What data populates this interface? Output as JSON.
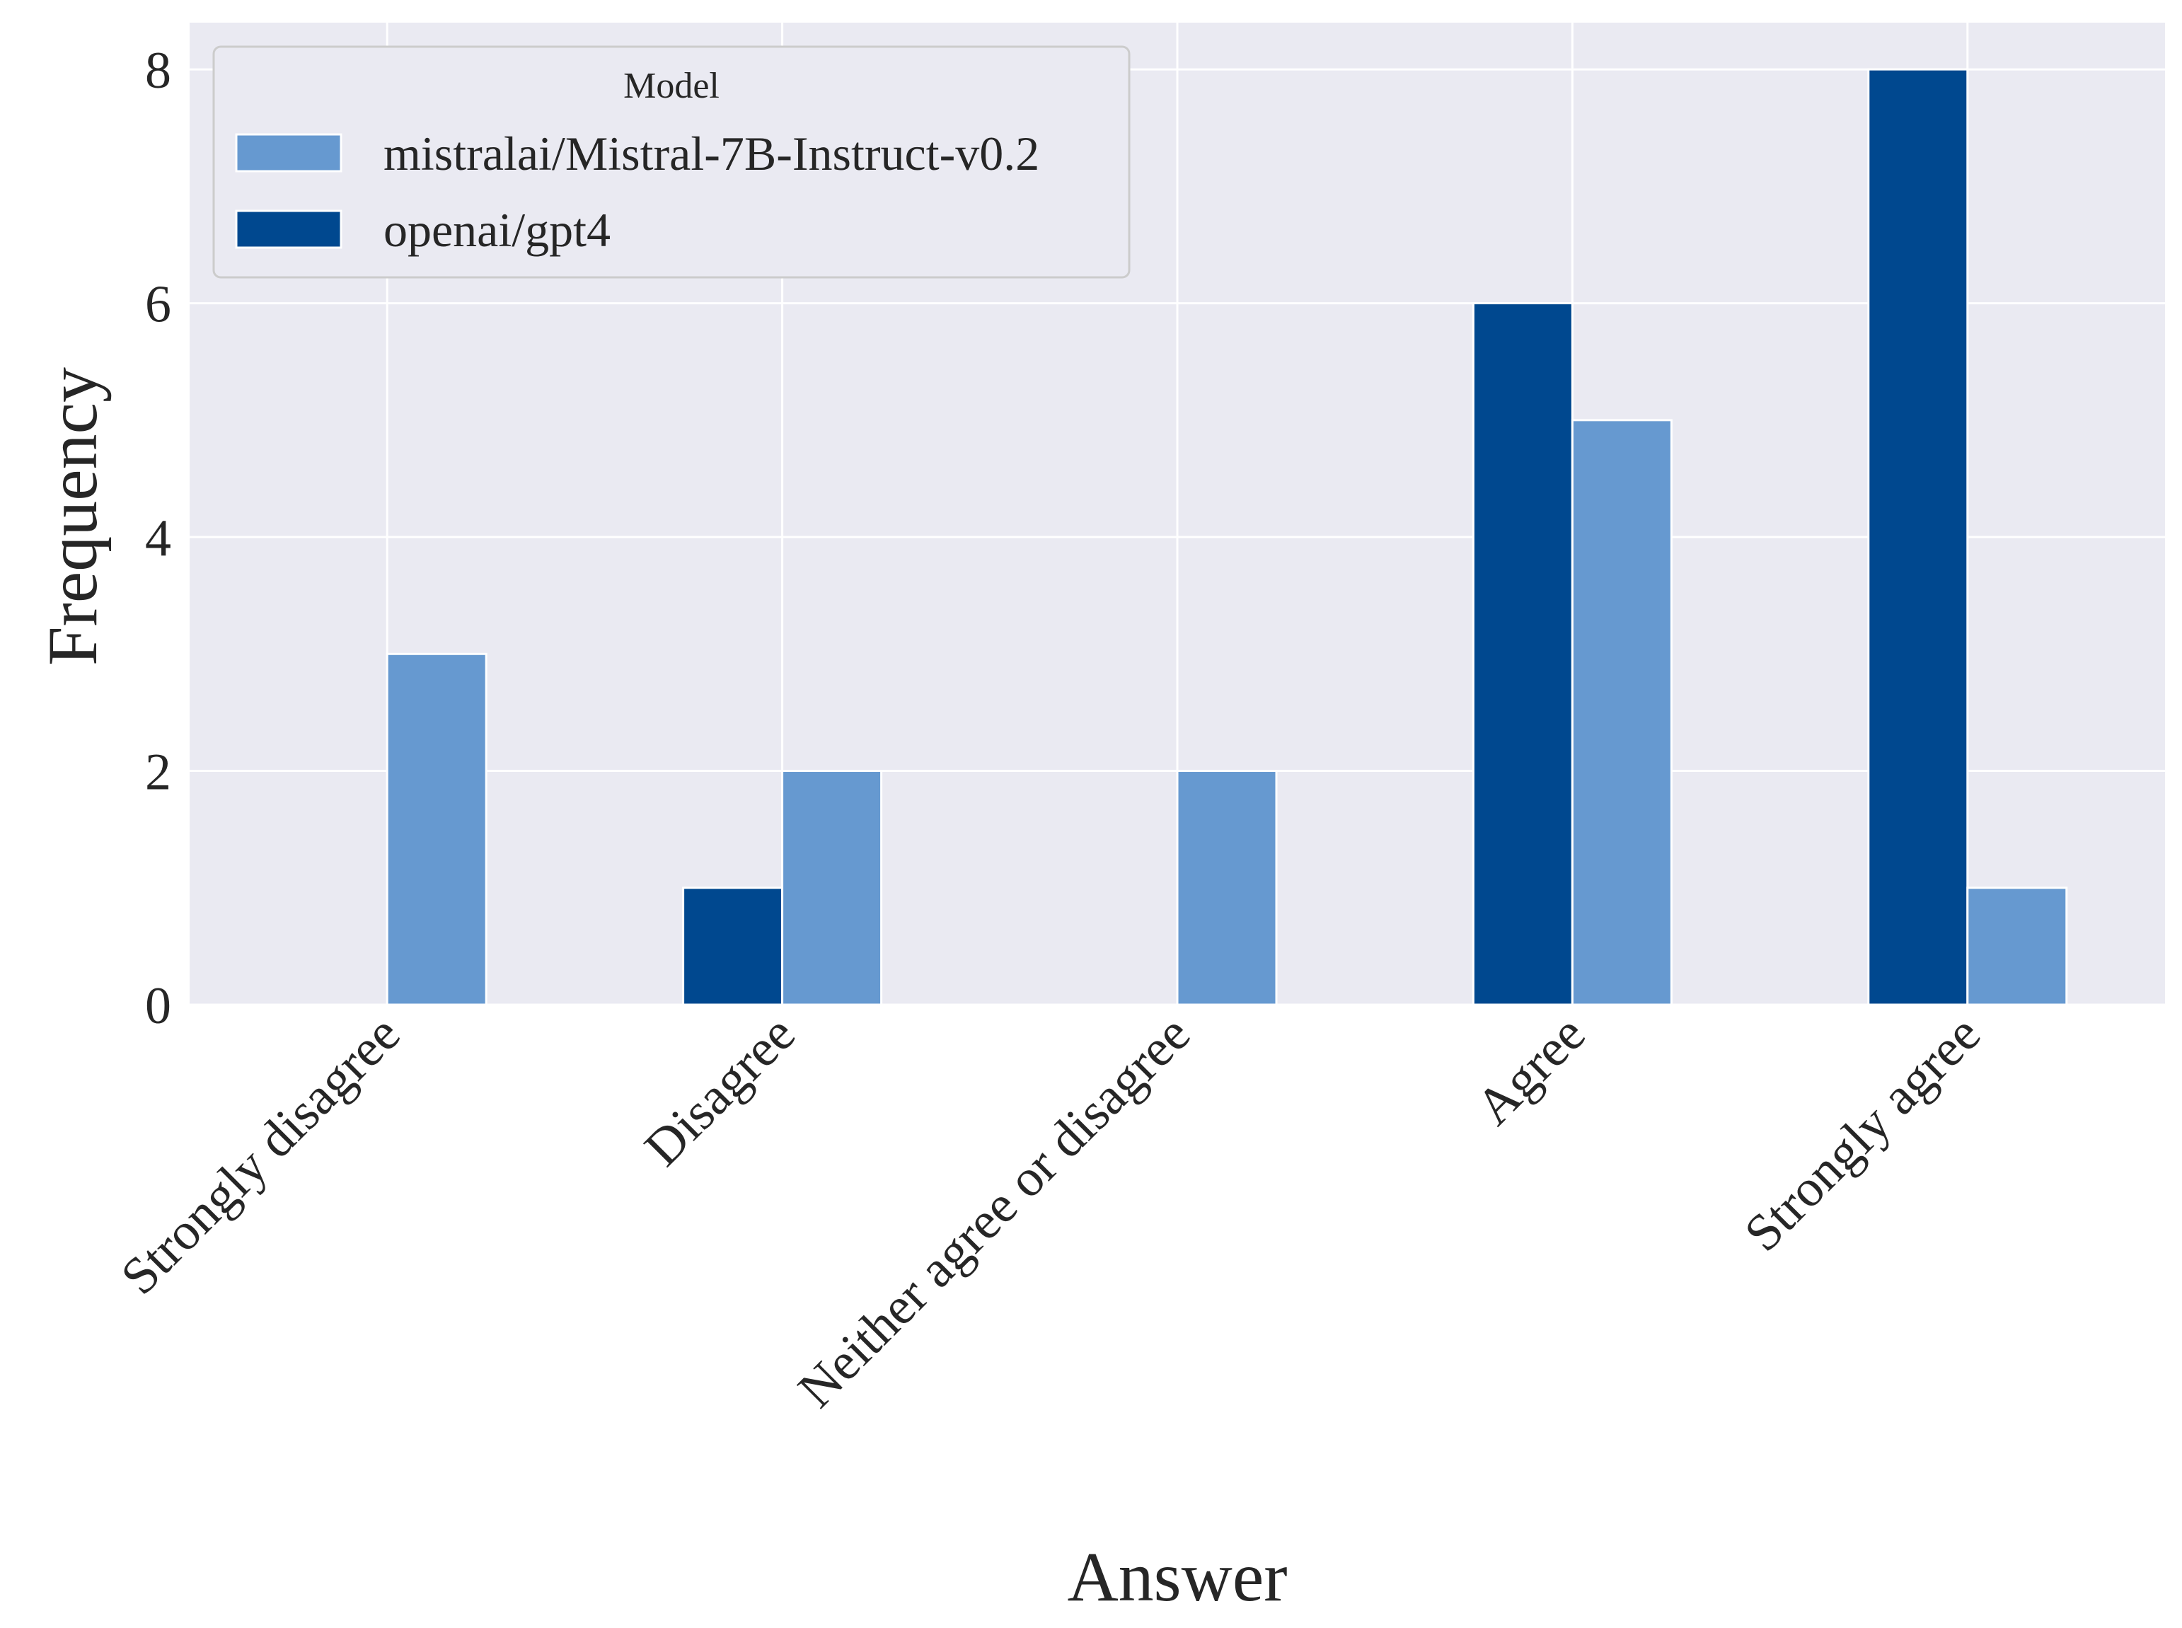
{
  "chart_data": {
    "type": "bar",
    "categories": [
      "Strongly disagree",
      "Disagree",
      "Neither agree or disagree",
      "Agree",
      "Strongly agree"
    ],
    "series": [
      {
        "name": "openai/gpt4",
        "color": "#00488f",
        "values": [
          0,
          1,
          0,
          6,
          8
        ]
      },
      {
        "name": "mistralai/Mistral-7B-Instruct-v0.2",
        "color": "#6699d0",
        "values": [
          3,
          2,
          2,
          5,
          1
        ]
      }
    ],
    "xlabel": "Answer",
    "ylabel": "Frequency",
    "ylim": [
      0,
      8.4
    ],
    "yticks": [
      0,
      2,
      4,
      6,
      8
    ],
    "grid": true,
    "legend": {
      "title": "Model",
      "position": "upper-left",
      "entries": [
        {
          "label": "mistralai/Mistral-7B-Instruct-v0.2",
          "color": "#6699d0"
        },
        {
          "label": "openai/gpt4",
          "color": "#00488f"
        }
      ]
    },
    "background": "#eaeaf2",
    "grid_color": "#ffffff"
  }
}
